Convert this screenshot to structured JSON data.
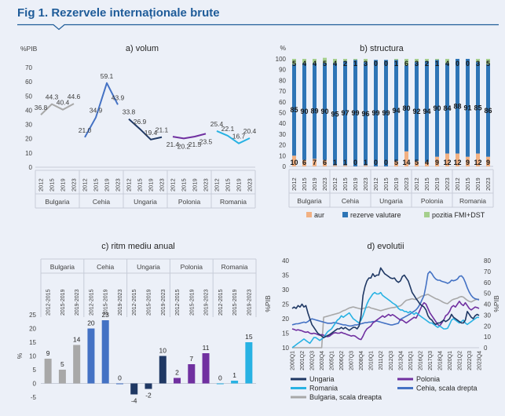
{
  "page": {
    "title": "Fig 1. Rezervele internaționale brute",
    "title_color": "#1f5c99",
    "background": "#ecf0f8"
  },
  "colors": {
    "bulgaria": "#a8a8a8",
    "cehia": "#4472c4",
    "ungaria": "#1f3864",
    "polonia": "#7030a0",
    "romania": "#28b2e3",
    "fx": "#2e75b6",
    "gold": "#f2b183",
    "fmi": "#a5cf8d",
    "axis_text": "#404040",
    "table_border": "#c7ccd8"
  },
  "chart_data": [
    {
      "id": "a",
      "type": "line",
      "title": "a) volum",
      "ylabel": "%PIB",
      "ylim": [
        0,
        70
      ],
      "yticks": [
        0,
        10,
        20,
        30,
        40,
        50,
        60,
        70
      ],
      "grid": false,
      "categories": [
        "Bulgaria",
        "Cehia",
        "Ungaria",
        "Polonia",
        "Romania"
      ],
      "years": [
        "2012",
        "2015",
        "2019",
        "2023"
      ],
      "series": [
        {
          "name": "Bulgaria",
          "color_key": "bulgaria",
          "values": [
            36.8,
            44.3,
            40.4,
            44.6
          ],
          "label_pos": [
            "a",
            "a",
            "a",
            "a"
          ]
        },
        {
          "name": "Cehia",
          "color_key": "cehia",
          "values": [
            21.0,
            34.9,
            59.1,
            43.9
          ],
          "label_pos": [
            "a",
            "a",
            "a",
            "a"
          ]
        },
        {
          "name": "Ungaria",
          "color_key": "ungaria",
          "values": [
            33.8,
            26.9,
            19.4,
            21.1
          ],
          "label_pos": [
            "a",
            "a",
            "a",
            "a"
          ]
        },
        {
          "name": "Polonia",
          "color_key": "polonia",
          "values": [
            21.4,
            20.2,
            21.5,
            23.5
          ],
          "label_pos": [
            "b",
            "b",
            "b",
            "b"
          ]
        },
        {
          "name": "Romania",
          "color_key": "romania",
          "values": [
            25.4,
            22.1,
            16.7,
            20.4
          ],
          "label_pos": [
            "a",
            "a",
            "a",
            "a"
          ]
        }
      ]
    },
    {
      "id": "b",
      "type": "stacked_bar",
      "title": "b) structura",
      "ylabel": "%",
      "ylim": [
        0,
        100
      ],
      "yticks": [
        0,
        10,
        20,
        30,
        40,
        50,
        60,
        70,
        80,
        90,
        100
      ],
      "grid": false,
      "legend_position": "bottom",
      "categories": [
        "Bulgaria",
        "Cehia",
        "Ungaria",
        "Polonia",
        "Romania"
      ],
      "years": [
        "2012",
        "2015",
        "2019",
        "2023"
      ],
      "series": [
        {
          "name": "aur",
          "color_key": "gold",
          "values": [
            10,
            6,
            7,
            6,
            1,
            1,
            0,
            1,
            0,
            0,
            5,
            14,
            5,
            4,
            9,
            12,
            12,
            9,
            12,
            9
          ]
        },
        {
          "name": "rezerve valutare",
          "color_key": "fx",
          "values": [
            85,
            90,
            89,
            90,
            95,
            97,
            99,
            96,
            99,
            99,
            94,
            80,
            92,
            94,
            90,
            84,
            88,
            91,
            85,
            86
          ]
        },
        {
          "name": "pozitia FMI+DST",
          "color_key": "fmi",
          "values": [
            5,
            4,
            4,
            5,
            4,
            2,
            1,
            3,
            0,
            0,
            1,
            6,
            3,
            2,
            1,
            4,
            0,
            0,
            3,
            5
          ]
        }
      ]
    },
    {
      "id": "c",
      "type": "bar",
      "title": "c) ritm mediu anual",
      "ylabel": "%",
      "ylim": [
        -5,
        25
      ],
      "yticks": [
        25,
        20,
        15,
        10,
        5,
        0,
        -5
      ],
      "grid": false,
      "categories": [
        "Bulgaria",
        "Cehia",
        "Ungaria",
        "Polonia",
        "Romania"
      ],
      "periods": [
        "2012-2015",
        "2015-2019",
        "2019-2023"
      ],
      "series": [
        {
          "name": "Bulgaria",
          "color_key": "bulgaria",
          "values": [
            9,
            5,
            14
          ]
        },
        {
          "name": "Cehia",
          "color_key": "cehia",
          "values": [
            20,
            23,
            0
          ]
        },
        {
          "name": "Ungaria",
          "color_key": "ungaria",
          "values": [
            -4,
            -2,
            10
          ]
        },
        {
          "name": "Polonia",
          "color_key": "polonia",
          "values": [
            2,
            7,
            11
          ]
        },
        {
          "name": "Romania",
          "color_key": "romania",
          "values": [
            0,
            1,
            15
          ]
        }
      ]
    },
    {
      "id": "d",
      "type": "line",
      "title": "d) evolutii",
      "ylabel_left": "%PIB",
      "ylabel_right": "%PIB",
      "ylim_left": [
        10,
        40
      ],
      "yticks_left": [
        10,
        15,
        20,
        25,
        30,
        35,
        40
      ],
      "ylim_right": [
        0,
        80
      ],
      "yticks_right": [
        0,
        10,
        20,
        30,
        40,
        50,
        60,
        70,
        80
      ],
      "grid": false,
      "n_points": 96,
      "x_ticks": [
        "2000Q1",
        "2001Q2",
        "2002Q3",
        "2003Q4",
        "2005Q1",
        "2006Q2",
        "2007Q3",
        "2008Q4",
        "2010Q1",
        "2011Q2",
        "2012Q3",
        "2013Q4",
        "2015Q1",
        "2016Q2",
        "2017Q3",
        "2018Q4",
        "2020Q1",
        "2021Q2",
        "2022Q3",
        "2023Q4"
      ],
      "x_tick_step": 5,
      "series": [
        {
          "name": "Bulgaria, scala dreapta",
          "axis": "right",
          "color_key": "bulgaria",
          "values": [
            0,
            0,
            0,
            0,
            0,
            0,
            0,
            0,
            0,
            0,
            0,
            0,
            0,
            0,
            0,
            0,
            28,
            28.5,
            29,
            29.5,
            30,
            30.5,
            31,
            31.5,
            32,
            33,
            34,
            34.5,
            35.5,
            36.5,
            37,
            37.5,
            37,
            36.5,
            36,
            35.5,
            36,
            36.5,
            37,
            37.5,
            36.5,
            36,
            35.5,
            35,
            34.5,
            34,
            34.5,
            35,
            35.5,
            36,
            36.5,
            36.8,
            37,
            37.5,
            38,
            38.5,
            40,
            42,
            43.5,
            44,
            44.5,
            45,
            44.5,
            44.3,
            45.5,
            46.5,
            47.5,
            48,
            48.5,
            49,
            48,
            47,
            46,
            45,
            44.5,
            43.5,
            42.5,
            41.5,
            40.8,
            40.4,
            42,
            43.5,
            44.5,
            45,
            45.5,
            46.5,
            47,
            46.5,
            45,
            43.5,
            42.5,
            42,
            43,
            44,
            44.5,
            44.6
          ]
        },
        {
          "name": "Cehia, scala drepta",
          "axis": "right",
          "color_key": "cehia",
          "values": [
            21,
            21.5,
            22,
            22,
            22.5,
            23,
            23.5,
            23,
            24,
            25.5,
            26.5,
            26,
            25.5,
            25,
            24.5,
            24,
            23.5,
            23,
            22.5,
            22.5,
            22.5,
            23,
            23,
            22.5,
            22,
            21.5,
            21,
            21,
            20.5,
            20,
            20,
            20.5,
            21,
            21,
            21.5,
            22,
            22.5,
            23,
            23,
            23.5,
            23.5,
            24,
            24,
            24.5,
            24,
            23.5,
            23,
            22.5,
            22,
            21.5,
            21,
            21,
            21.5,
            22,
            22.5,
            26,
            27,
            28,
            29,
            30,
            31,
            32.5,
            33.5,
            34.9,
            37,
            40,
            44,
            48,
            57,
            68,
            70,
            68,
            65,
            63,
            62,
            62,
            61,
            60.5,
            60,
            59.1,
            60,
            62,
            61.5,
            62,
            63,
            65.5,
            66,
            64,
            60,
            55,
            51,
            48,
            46,
            45,
            44.5,
            43.9
          ]
        },
        {
          "name": "Polonia",
          "axis": "left",
          "color_key": "polonia",
          "values": [
            16.5,
            16.3,
            16,
            16.2,
            16,
            15.8,
            15.5,
            15.3,
            15.5,
            15,
            14.8,
            15,
            14.8,
            14.5,
            14.3,
            14.5,
            14.3,
            14,
            13.8,
            14,
            14.5,
            15,
            15.2,
            15,
            15,
            15.3,
            15,
            14.8,
            14.5,
            14.3,
            14,
            14.2,
            14,
            13.5,
            13,
            12.8,
            14,
            15.5,
            16.5,
            17,
            17.5,
            18.5,
            19,
            19.5,
            20,
            20.5,
            21,
            20.5,
            21,
            21.5,
            21,
            21.4,
            21,
            20.5,
            20,
            19.5,
            19.5,
            19,
            18.5,
            19,
            19.5,
            20,
            20.5,
            20.2,
            21.5,
            23,
            24.5,
            25.5,
            25,
            23.5,
            22,
            21,
            20,
            19,
            18,
            17.5,
            18.5,
            19.5,
            21,
            21.5,
            22.5,
            24,
            24.5,
            24,
            25,
            26,
            25,
            24.5,
            25.5,
            24.5,
            23.5,
            23,
            23.5,
            24,
            23.8,
            23.5
          ]
        },
        {
          "name": "Romania",
          "axis": "left",
          "color_key": "romania",
          "values": [
            10,
            10.5,
            11,
            11.5,
            12,
            12.5,
            13,
            12.5,
            12,
            11.5,
            12.5,
            13.5,
            13.5,
            13,
            12.5,
            13,
            13.5,
            14.5,
            15.5,
            16,
            16.5,
            17.5,
            18.5,
            19.5,
            20,
            21,
            20.5,
            21,
            21.5,
            22,
            21,
            20,
            19.5,
            19,
            18.5,
            19.5,
            21,
            23,
            25,
            26.5,
            27.5,
            28.5,
            29,
            28.5,
            28.5,
            29,
            28,
            27.5,
            27,
            26.5,
            26,
            25.4,
            25,
            24.5,
            23.5,
            23,
            23,
            22.5,
            22.5,
            22,
            22.5,
            22,
            21.5,
            22.1,
            21.5,
            21,
            20.5,
            20,
            19.5,
            19,
            18.5,
            18.5,
            18,
            17.5,
            17,
            17.5,
            17,
            16.5,
            16.5,
            16.7,
            18,
            19.5,
            20,
            19.5,
            19,
            18.5,
            19,
            19.5,
            18.5,
            18,
            18.5,
            19,
            19.5,
            20,
            20.5,
            20.4
          ]
        },
        {
          "name": "Ungaria",
          "axis": "left",
          "color_key": "ungaria",
          "values": [
            23.5,
            24,
            23.5,
            24.5,
            24,
            25,
            24,
            24.5,
            22,
            20,
            18,
            17,
            16,
            15,
            14.5,
            14,
            13.5,
            13.8,
            14.2,
            14.5,
            15,
            15.5,
            16,
            16.5,
            16.5,
            17,
            16.5,
            17,
            16.5,
            16,
            16.5,
            17,
            17,
            16.5,
            17.5,
            21,
            28,
            31,
            33,
            34,
            34,
            35.5,
            34.5,
            35,
            35,
            37.5,
            36.5,
            35.5,
            35,
            34.5,
            34,
            33.8,
            34,
            33,
            32.5,
            33,
            34.5,
            35,
            34,
            33,
            31,
            29,
            28,
            26.9,
            26,
            25,
            24.5,
            24,
            23,
            21,
            20,
            19.5,
            18.5,
            18,
            18.5,
            18.5,
            19,
            19.5,
            19,
            19.4,
            20,
            21.5,
            20.5,
            20,
            19.5,
            19,
            18.5,
            18.5,
            19.5,
            22.5,
            21.5,
            20.5,
            20,
            21,
            21.5,
            21.1
          ]
        }
      ],
      "legend_cols": [
        [
          {
            "label": "Ungaria",
            "color_key": "ungaria"
          },
          {
            "label": "Romania",
            "color_key": "romania"
          },
          {
            "label": "Bulgaria, scala dreapta",
            "color_key": "bulgaria"
          }
        ],
        [
          {
            "label": "Polonia",
            "color_key": "polonia"
          },
          {
            "label": "Cehia, scala drepta",
            "color_key": "cehia"
          }
        ]
      ]
    }
  ]
}
